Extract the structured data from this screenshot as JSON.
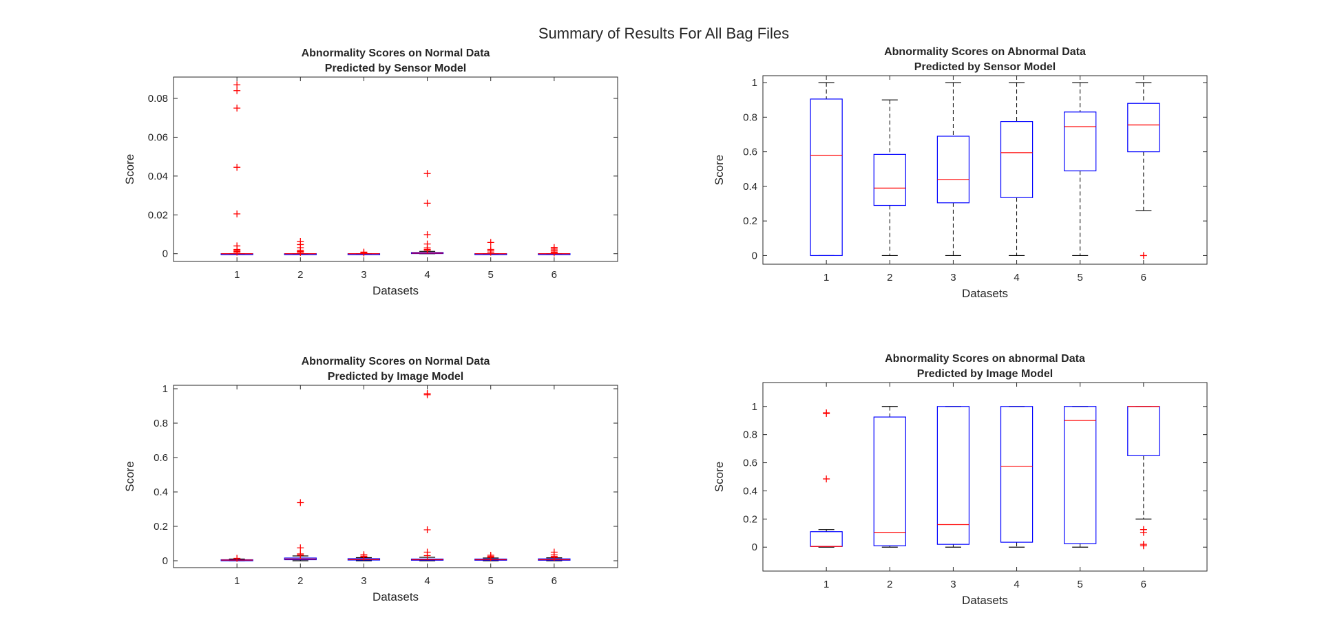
{
  "figure": {
    "title": "Summary of Results For All Bag Files"
  },
  "colors": {
    "box": "#0000ff",
    "median": "#ff0000",
    "outlier": "#ff0000",
    "whisker": "#000000",
    "axis": "#262626"
  },
  "chart_data": [
    {
      "type": "box",
      "title": [
        "Abnormality Scores on Normal Data",
        "Predicted by Sensor Model"
      ],
      "xlabel": "Datasets",
      "ylabel": "Score",
      "categories": [
        "1",
        "2",
        "3",
        "4",
        "5",
        "6"
      ],
      "ylim": [
        -0.004,
        0.091
      ],
      "yticks": [
        0,
        0.02,
        0.04,
        0.06,
        0.08
      ],
      "ytick_labels": [
        "0",
        "0.02",
        "0.04",
        "0.06",
        "0.08"
      ],
      "boxes": [
        {
          "q1": 0,
          "median": 0,
          "q3": 0,
          "whisker_low": 0,
          "whisker_high": 0,
          "outliers": [
            0.087,
            0.084,
            0.075,
            0.0445,
            0.0205,
            0.004,
            0.0022,
            0.0018,
            0.0012,
            0.0008
          ]
        },
        {
          "q1": 0,
          "median": 0,
          "q3": 0,
          "whisker_low": 0,
          "whisker_high": 0,
          "outliers": [
            0.0063,
            0.0047,
            0.0031,
            0.0018,
            0.0012,
            0.0006
          ]
        },
        {
          "q1": 0,
          "median": 0,
          "q3": 0,
          "whisker_low": 0,
          "whisker_high": 0,
          "outliers": [
            0.0008,
            0.0004
          ]
        },
        {
          "q1": 0.0001,
          "median": 0.0003,
          "q3": 0.0006,
          "whisker_low": 0,
          "whisker_high": 0.0012,
          "outliers": [
            0.0413,
            0.026,
            0.0098,
            0.005,
            0.003,
            0.0022,
            0.0018
          ]
        },
        {
          "q1": 0,
          "median": 0,
          "q3": 0,
          "whisker_low": 0,
          "whisker_high": 0,
          "outliers": [
            0.0058,
            0.0022,
            0.0015,
            0.0008
          ]
        },
        {
          "q1": 0,
          "median": 0,
          "q3": 0,
          "whisker_low": 0,
          "whisker_high": 0,
          "outliers": [
            0.0032,
            0.0024,
            0.0016,
            0.0009,
            0.0004
          ]
        }
      ]
    },
    {
      "type": "box",
      "title": [
        "Abnormality Scores on Abnormal Data",
        "Predicted by Sensor Model"
      ],
      "xlabel": "Datasets",
      "ylabel": "Score",
      "categories": [
        "1",
        "2",
        "3",
        "4",
        "5",
        "6"
      ],
      "ylim": [
        -0.05,
        1.04
      ],
      "yticks": [
        0,
        0.2,
        0.4,
        0.6,
        0.8,
        1
      ],
      "ytick_labels": [
        "0",
        "0.2",
        "0.4",
        "0.6",
        "0.8",
        "1"
      ],
      "boxes": [
        {
          "q1": 0,
          "median": 0.58,
          "q3": 0.905,
          "whisker_low": 0,
          "whisker_high": 1,
          "outliers": []
        },
        {
          "q1": 0.29,
          "median": 0.39,
          "q3": 0.585,
          "whisker_low": 0,
          "whisker_high": 0.9,
          "outliers": []
        },
        {
          "q1": 0.305,
          "median": 0.44,
          "q3": 0.69,
          "whisker_low": 0,
          "whisker_high": 1,
          "outliers": []
        },
        {
          "q1": 0.335,
          "median": 0.595,
          "q3": 0.775,
          "whisker_low": 0,
          "whisker_high": 1,
          "outliers": []
        },
        {
          "q1": 0.49,
          "median": 0.745,
          "q3": 0.83,
          "whisker_low": 0,
          "whisker_high": 1,
          "outliers": []
        },
        {
          "q1": 0.6,
          "median": 0.755,
          "q3": 0.88,
          "whisker_low": 0.26,
          "whisker_high": 1,
          "outliers": [
            0
          ]
        }
      ]
    },
    {
      "type": "box",
      "title": [
        "Abnormality Scores on Normal Data",
        "Predicted by Image Model"
      ],
      "xlabel": "Datasets",
      "ylabel": "Score",
      "categories": [
        "1",
        "2",
        "3",
        "4",
        "5",
        "6"
      ],
      "ylim": [
        -0.04,
        1.02
      ],
      "yticks": [
        0,
        0.2,
        0.4,
        0.6,
        0.8,
        1
      ],
      "ytick_labels": [
        "0",
        "0.2",
        "0.4",
        "0.6",
        "0.8",
        "1"
      ],
      "boxes": [
        {
          "q1": 0.002,
          "median": 0.004,
          "q3": 0.006,
          "whisker_low": 0,
          "whisker_high": 0.01,
          "outliers": [
            0.014
          ]
        },
        {
          "q1": 0.006,
          "median": 0.01,
          "q3": 0.016,
          "whisker_low": 0,
          "whisker_high": 0.028,
          "outliers": [
            0.338,
            0.075,
            0.04,
            0.033
          ]
        },
        {
          "q1": 0.004,
          "median": 0.007,
          "q3": 0.012,
          "whisker_low": 0,
          "whisker_high": 0.018,
          "outliers": [
            0.035,
            0.027,
            0.022
          ]
        },
        {
          "q1": 0.003,
          "median": 0.006,
          "q3": 0.01,
          "whisker_low": 0,
          "whisker_high": 0.02,
          "outliers": [
            0.972,
            0.965,
            0.18,
            0.05,
            0.03
          ]
        },
        {
          "q1": 0.003,
          "median": 0.006,
          "q3": 0.01,
          "whisker_low": 0,
          "whisker_high": 0.016,
          "outliers": [
            0.032,
            0.025,
            0.02
          ]
        },
        {
          "q1": 0.003,
          "median": 0.006,
          "q3": 0.011,
          "whisker_low": 0,
          "whisker_high": 0.017,
          "outliers": [
            0.05,
            0.034,
            0.025,
            0.02
          ]
        }
      ]
    },
    {
      "type": "box",
      "title": [
        "Abnormality Scores on abnormal Data",
        "Predicted by Image Model"
      ],
      "xlabel": "Datasets",
      "ylabel": "Score",
      "categories": [
        "1",
        "2",
        "3",
        "4",
        "5",
        "6"
      ],
      "ylim": [
        -0.17,
        1.17
      ],
      "yticks": [
        0,
        0.2,
        0.4,
        0.6,
        0.8,
        1
      ],
      "ytick_labels": [
        "0",
        "0.2",
        "0.4",
        "0.6",
        "0.8",
        "1"
      ],
      "boxes": [
        {
          "q1": 0.005,
          "median": 0.005,
          "q3": 0.11,
          "whisker_low": 0,
          "whisker_high": 0.125,
          "outliers": [
            0.955,
            0.95,
            0.485
          ]
        },
        {
          "q1": 0.01,
          "median": 0.105,
          "q3": 0.925,
          "whisker_low": 0,
          "whisker_high": 1,
          "outliers": []
        },
        {
          "q1": 0.02,
          "median": 0.16,
          "q3": 1,
          "whisker_low": 0,
          "whisker_high": 1,
          "outliers": []
        },
        {
          "q1": 0.035,
          "median": 0.575,
          "q3": 1,
          "whisker_low": 0,
          "whisker_high": 1,
          "outliers": []
        },
        {
          "q1": 0.025,
          "median": 0.9,
          "q3": 1,
          "whisker_low": 0,
          "whisker_high": 1,
          "outliers": []
        },
        {
          "q1": 0.65,
          "median": 1,
          "q3": 1,
          "whisker_low": 0.2,
          "whisker_high": 1,
          "outliers": [
            0.125,
            0.105,
            0.02,
            0.01
          ]
        }
      ]
    }
  ]
}
